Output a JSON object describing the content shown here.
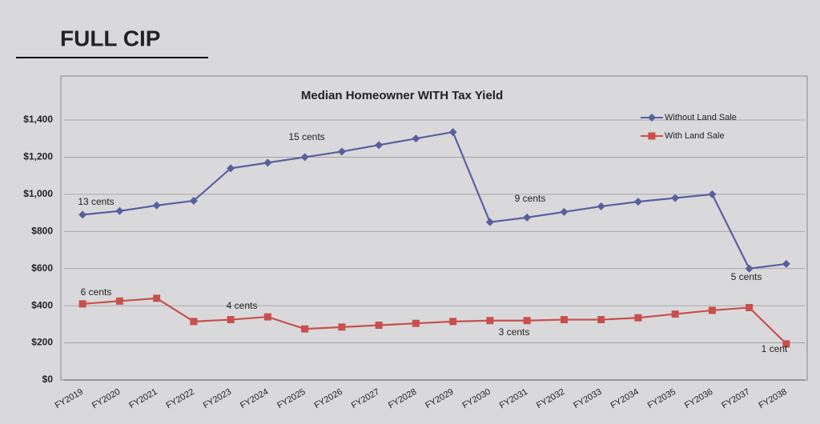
{
  "header": "FULL CIP",
  "chart_data": {
    "type": "line",
    "title": "Median Homeowner WITH Tax Yield",
    "categories": [
      "FY2019",
      "FY2020",
      "FY2021",
      "FY2022",
      "FY2023",
      "FY2024",
      "FY2025",
      "FY2026",
      "FY2027",
      "FY2028",
      "FY2029",
      "FY2030",
      "FY2031",
      "FY2032",
      "FY2033",
      "FY2034",
      "FY2035",
      "FY2036",
      "FY2037",
      "FY2038"
    ],
    "series": [
      {
        "name": "Without Land Sale",
        "color": "#5a5f9e",
        "marker": "diamond",
        "values": [
          890,
          910,
          940,
          965,
          1140,
          1170,
          1200,
          1230,
          1265,
          1300,
          1335,
          850,
          875,
          905,
          935,
          960,
          980,
          1000,
          600,
          625
        ]
      },
      {
        "name": "With Land Sale",
        "color": "#c8504c",
        "marker": "square",
        "values": [
          410,
          425,
          440,
          315,
          325,
          340,
          275,
          285,
          295,
          305,
          315,
          320,
          320,
          325,
          325,
          335,
          355,
          375,
          390,
          195
        ]
      }
    ],
    "ylim": [
      0,
      1400
    ],
    "yticks": [
      {
        "value": 0,
        "label": "$0"
      },
      {
        "value": 200,
        "label": "$200"
      },
      {
        "value": 400,
        "label": "$400"
      },
      {
        "value": 600,
        "label": "$600"
      },
      {
        "value": 800,
        "label": "$800"
      },
      {
        "value": 1000,
        "label": "$1,000"
      },
      {
        "value": 1200,
        "label": "$1,200"
      },
      {
        "value": 1400,
        "label": "$1,400"
      }
    ],
    "grid": true,
    "legend": "top-right",
    "annotations": [
      "13 cents",
      "6 cents",
      "15 cents",
      "4 cents",
      "9 cents",
      "3 cents",
      "5 cents",
      "1 cent"
    ]
  }
}
